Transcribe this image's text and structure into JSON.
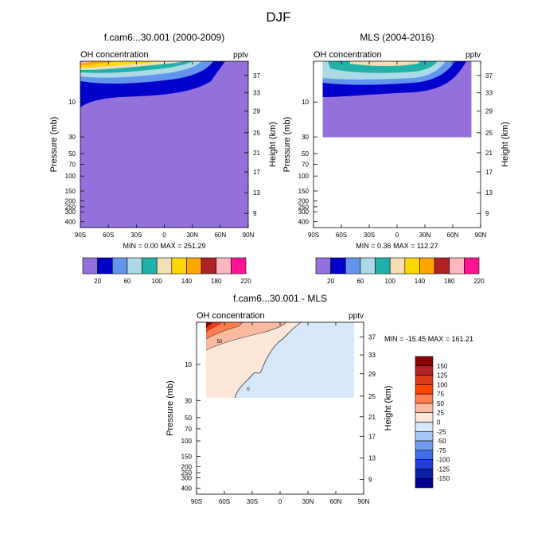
{
  "figure": {
    "title": "DJF"
  },
  "chart_data": [
    {
      "type": "contour",
      "title": "f.cam6...30.001 (2000-2009)",
      "subtitle_left": "OH concentration",
      "subtitle_right": "pptv",
      "ylabel": "Pressure (mb)",
      "ylabel_right": "Height (km)",
      "x_ticks": [
        "90S",
        "60S",
        "30S",
        "0",
        "30N",
        "60N",
        "90N"
      ],
      "y_ticks": [
        "10",
        "30",
        "50",
        "70",
        "100",
        "150",
        "200",
        "250",
        "300",
        "400"
      ],
      "y_ticks_right": [
        "37",
        "33",
        "29",
        "25",
        "21",
        "17",
        "13",
        "9"
      ],
      "stats": "MIN =   0.00  MAX = 251.29",
      "colorbar_labels": [
        "20",
        "60",
        "100",
        "140",
        "180",
        "220"
      ],
      "colorbar_colors": [
        "#9370db",
        "#0000cd",
        "#6495ed",
        "#add8e6",
        "#20b2aa",
        "#f5deb3",
        "#ffd700",
        "#ffa500",
        "#b22222",
        "#ffb6c1",
        "#ff1493"
      ],
      "fill_color": "#9370db"
    },
    {
      "type": "contour",
      "title": "MLS (2004-2016)",
      "subtitle_left": "OH concentration",
      "subtitle_right": "pptv",
      "ylabel": "Pressure (mb)",
      "ylabel_right": "Height (km)",
      "x_ticks": [
        "90S",
        "60S",
        "30S",
        "0",
        "30N",
        "60N",
        "90N"
      ],
      "y_ticks": [
        "10",
        "30",
        "50",
        "70",
        "100",
        "150",
        "200",
        "250",
        "300",
        "400"
      ],
      "y_ticks_right": [
        "37",
        "33",
        "29",
        "25",
        "21",
        "17",
        "13",
        "9"
      ],
      "stats": "MIN =   0.36  MAX = 112.27",
      "colorbar_labels": [
        "20",
        "60",
        "100",
        "140",
        "180",
        "220"
      ],
      "colorbar_colors": [
        "#9370db",
        "#0000cd",
        "#6495ed",
        "#add8e6",
        "#20b2aa",
        "#f5deb3",
        "#ffd700",
        "#ffa500",
        "#b22222",
        "#ffb6c1",
        "#ff1493"
      ],
      "fill_color": "#9370db"
    },
    {
      "type": "contour",
      "title": "f.cam6...30.001 - MLS",
      "subtitle_left": "OH concentration",
      "subtitle_right": "pptv",
      "ylabel": "Pressure (mb)",
      "ylabel_right": "Height (km)",
      "x_ticks": [
        "90S",
        "60S",
        "30S",
        "0",
        "30N",
        "60N",
        "90N"
      ],
      "y_ticks": [
        "10",
        "30",
        "50",
        "70",
        "100",
        "150",
        "200",
        "250",
        "300",
        "400"
      ],
      "y_ticks_right": [
        "37",
        "33",
        "29",
        "25",
        "21",
        "17",
        "13",
        "9"
      ],
      "stats": "MIN = -15.45  MAX = 161.21",
      "contour_labels": [
        "50",
        "0"
      ],
      "colorbar_labels": [
        "150",
        "125",
        "100",
        "75",
        "50",
        "25",
        "0",
        "-25",
        "-50",
        "-75",
        "-100",
        "-125",
        "-150"
      ],
      "colorbar_colors": [
        "#8b0000",
        "#b22222",
        "#dc3c1e",
        "#ff4500",
        "#ff7f50",
        "#fbbaa0",
        "#fde7d8",
        "#d6e8fa",
        "#a4c6f2",
        "#6f9ef0",
        "#3f6fe8",
        "#1f3fd8",
        "#0a1fa8",
        "#00008b"
      ]
    }
  ]
}
